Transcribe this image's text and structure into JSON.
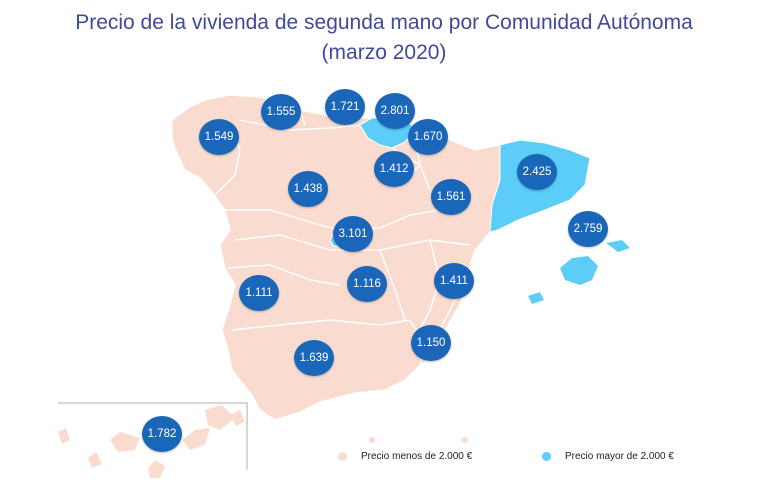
{
  "title": {
    "line1": "Precio de la vivienda de segunda mano por Comunidad Autónoma",
    "line2": "(marzo 2020)"
  },
  "colors": {
    "below_threshold": "#f9dccf",
    "above_threshold": "#5bcdf6",
    "bubble": "#1a66b8",
    "title": "#3f4a9c"
  },
  "prices": {
    "galicia": "1.549",
    "asturias": "1.555",
    "cantabria": "1.721",
    "pais_vasco": "2.801",
    "navarra": "1.670",
    "la_rioja": "1.412",
    "castilla_leon": "1.438",
    "aragon": "1.561",
    "cataluna": "2.425",
    "baleares": "2.759",
    "madrid": "3.101",
    "extremadura": "1.111",
    "castilla_la_mancha": "1.116",
    "valencia": "1.411",
    "murcia": "1.150",
    "andalucia": "1.639",
    "canarias": "1.782"
  },
  "legend": {
    "below": "Precio menos de 2.000 €",
    "above": "Precio mayor de 2.000 €"
  }
}
